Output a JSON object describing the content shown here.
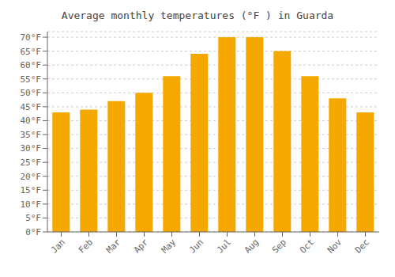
{
  "chart_data": {
    "type": "bar",
    "title": "Average monthly temperatures (°F ) in Guarda",
    "categories": [
      "Jan",
      "Feb",
      "Mar",
      "Apr",
      "May",
      "Jun",
      "Jul",
      "Aug",
      "Sep",
      "Oct",
      "Nov",
      "Dec"
    ],
    "values": [
      43,
      44,
      47,
      50,
      56,
      64,
      70,
      70,
      65,
      56,
      48,
      43
    ],
    "color": "#F5A800",
    "ylim": [
      0,
      72
    ],
    "yticks": [
      {
        "value": 0,
        "label": "0°F"
      },
      {
        "value": 5,
        "label": "5°F"
      },
      {
        "value": 10,
        "label": "10°F"
      },
      {
        "value": 15,
        "label": "15°F"
      },
      {
        "value": 20,
        "label": "20°F"
      },
      {
        "value": 25,
        "label": "25°F"
      },
      {
        "value": 30,
        "label": "30°F"
      },
      {
        "value": 35,
        "label": "35°F"
      },
      {
        "value": 40,
        "label": "40°F"
      },
      {
        "value": 45,
        "label": "45°F"
      },
      {
        "value": 50,
        "label": "50°F"
      },
      {
        "value": 55,
        "label": "55°F"
      },
      {
        "value": 60,
        "label": "60°F"
      },
      {
        "value": 65,
        "label": "65°F"
      },
      {
        "value": 70,
        "label": "70°F"
      }
    ],
    "grid": true
  }
}
